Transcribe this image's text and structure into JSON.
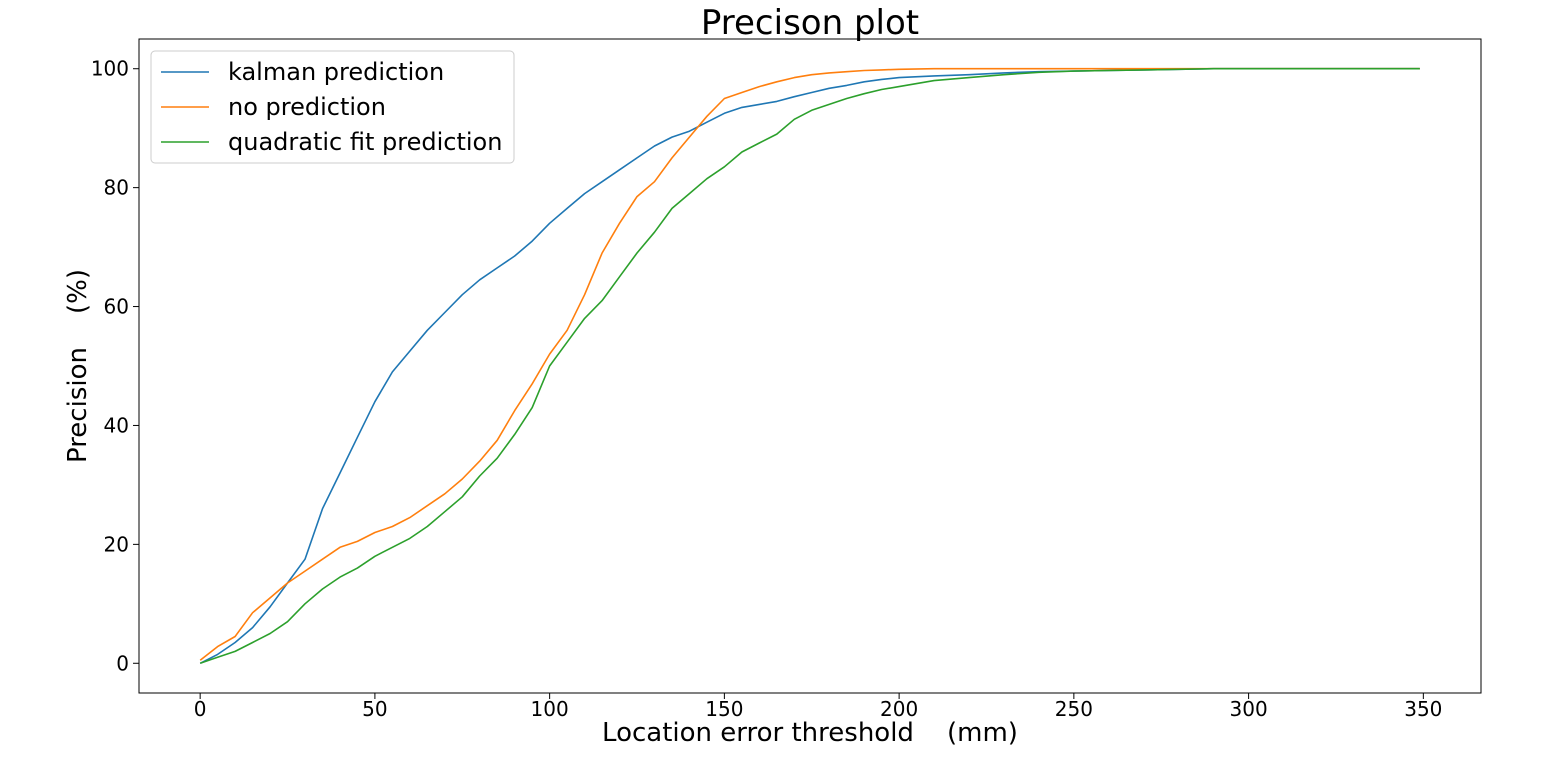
{
  "chart_data": {
    "type": "line",
    "title": "Precison plot",
    "xlabel": "Location error threshold    (mm)",
    "ylabel": "Precision    (%)",
    "xlim": [
      -17.5,
      366.5
    ],
    "ylim": [
      -5,
      105
    ],
    "xticks": [
      0,
      50,
      100,
      150,
      200,
      250,
      300,
      350
    ],
    "yticks": [
      0,
      20,
      40,
      60,
      80,
      100
    ],
    "grid": false,
    "legend_position": "top-left",
    "x": [
      0,
      5,
      10,
      15,
      20,
      25,
      30,
      35,
      40,
      45,
      50,
      55,
      60,
      65,
      70,
      75,
      80,
      85,
      90,
      95,
      100,
      105,
      110,
      115,
      120,
      125,
      130,
      135,
      140,
      145,
      150,
      155,
      160,
      165,
      170,
      175,
      180,
      185,
      190,
      195,
      200,
      210,
      220,
      230,
      240,
      250,
      260,
      270,
      280,
      290,
      300,
      320,
      349
    ],
    "series": [
      {
        "name": "kalman prediction",
        "color": "#1f77b4",
        "values": [
          0,
          1.5,
          3.5,
          6,
          9.5,
          13.5,
          17.5,
          26,
          32,
          38,
          44,
          49,
          52.5,
          56,
          59,
          62,
          64.5,
          66.5,
          68.5,
          71,
          74,
          76.5,
          79,
          81,
          83,
          85,
          87,
          88.5,
          89.5,
          91,
          92.5,
          93.5,
          94,
          94.5,
          95.3,
          96,
          96.7,
          97.2,
          97.8,
          98.2,
          98.5,
          98.8,
          99,
          99.3,
          99.5,
          99.6,
          99.7,
          99.8,
          99.9,
          100,
          100,
          100,
          100
        ]
      },
      {
        "name": "no prediction",
        "color": "#ff7f0e",
        "values": [
          0.5,
          2.8,
          4.5,
          8.5,
          11,
          13.5,
          15.5,
          17.5,
          19.5,
          20.5,
          22,
          23,
          24.5,
          26.5,
          28.5,
          31,
          34,
          37.5,
          42.5,
          47,
          52,
          56,
          62,
          69,
          74,
          78.5,
          81,
          85,
          88.5,
          92,
          95,
          96,
          97,
          97.8,
          98.5,
          99,
          99.3,
          99.5,
          99.7,
          99.8,
          99.9,
          100,
          100,
          100,
          100,
          100,
          100,
          100,
          100,
          100,
          100,
          100,
          100
        ]
      },
      {
        "name": "quadratic fit prediction",
        "color": "#2ca02c",
        "values": [
          0,
          1,
          2,
          3.5,
          5,
          7,
          10,
          12.5,
          14.5,
          16,
          18,
          19.5,
          21,
          23,
          25.5,
          28,
          31.5,
          34.5,
          38.5,
          43,
          50,
          54,
          58,
          61,
          65,
          69,
          72.5,
          76.5,
          79,
          81.5,
          83.5,
          86,
          87.5,
          89,
          91.5,
          93,
          94,
          95,
          95.8,
          96.5,
          97,
          98,
          98.5,
          99,
          99.4,
          99.6,
          99.7,
          99.8,
          99.9,
          100,
          100,
          100,
          100
        ]
      }
    ]
  }
}
